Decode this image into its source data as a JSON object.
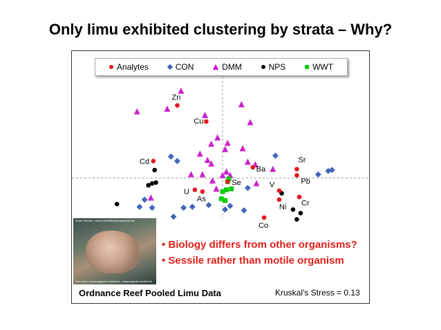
{
  "slide": {
    "title": "Only limu exhibited clustering by strata – Why?",
    "bullets": [
      "•  Biology differs from other organisms?",
      "•  Sessile rather than motile organism"
    ],
    "footer_left": "Ordnance Reef Pooled Limu Data",
    "footer_right": "Kruskal's Stress = 0.13",
    "photo_caption_top": "Keoki Stender - www.marinelifephotography.com",
    "photo_caption_bottom": "Limu kohu (Asparagopsis taxiformis) - Asparagopsis taxiformis"
  },
  "colors": {
    "analytes": "#e8161c",
    "con": "#4466bb",
    "dmm": "#cc22cc",
    "nps": "#000000",
    "wwt": "#11cc11"
  },
  "chart_data": {
    "type": "scatter",
    "title": "",
    "xlabel": "",
    "ylabel": "",
    "xlim": [
      -1.0,
      1.0
    ],
    "ylim": [
      -1.0,
      1.0
    ],
    "grid": false,
    "reference_lines": {
      "x": 0,
      "y": 0,
      "style": "dashed"
    },
    "legend": {
      "placement": "top-center",
      "entries": [
        {
          "key": "analytes",
          "label": "Analytes",
          "marker": "circle"
        },
        {
          "key": "con",
          "label": "CON",
          "marker": "diamond"
        },
        {
          "key": "dmm",
          "label": "DMM",
          "marker": "triangle"
        },
        {
          "key": "nps",
          "label": "NPS",
          "marker": "circle"
        },
        {
          "key": "wwt",
          "label": "WWT",
          "marker": "square"
        }
      ]
    },
    "analytes": [
      {
        "label": "Zn",
        "x": -0.36,
        "y": 0.81
      },
      {
        "label": "Cu",
        "x": -0.13,
        "y": 0.63
      },
      {
        "label": "Cd",
        "x": -0.55,
        "y": 0.19
      },
      {
        "label": "U",
        "x": -0.22,
        "y": -0.13
      },
      {
        "label": "As",
        "x": -0.16,
        "y": -0.15
      },
      {
        "label": "Se",
        "x": 0.04,
        "y": -0.04
      },
      {
        "label": "Ba",
        "x": 0.24,
        "y": 0.12
      },
      {
        "label": "Sr",
        "x": 0.59,
        "y": 0.1
      },
      {
        "label": "Pb",
        "x": 0.59,
        "y": 0.03
      },
      {
        "label": "V",
        "x": 0.45,
        "y": -0.14
      },
      {
        "label": "Ni",
        "x": 0.45,
        "y": -0.24
      },
      {
        "label": "Cr",
        "x": 0.61,
        "y": -0.21
      },
      {
        "label": "Co",
        "x": 0.33,
        "y": -0.44
      }
    ],
    "series": [
      {
        "name": "CON",
        "key": "con",
        "points": [
          [
            -0.41,
            0.24
          ],
          [
            -0.36,
            0.19
          ],
          [
            -0.62,
            -0.24
          ],
          [
            -0.66,
            -0.32
          ],
          [
            -0.56,
            -0.33
          ],
          [
            -0.39,
            -0.43
          ],
          [
            -0.31,
            -0.33
          ],
          [
            -0.24,
            -0.32
          ],
          [
            -0.11,
            -0.3
          ],
          [
            0.02,
            -0.35
          ],
          [
            0.06,
            -0.31
          ],
          [
            0.17,
            -0.36
          ],
          [
            0.2,
            -0.11
          ],
          [
            0.42,
            0.25
          ],
          [
            0.76,
            0.04
          ],
          [
            0.84,
            0.08
          ],
          [
            0.87,
            0.09
          ]
        ]
      },
      {
        "name": "DMM",
        "key": "dmm",
        "points": [
          [
            -0.68,
            0.74
          ],
          [
            -0.44,
            0.77
          ],
          [
            -0.33,
            0.97
          ],
          [
            -0.14,
            0.7
          ],
          [
            0.15,
            0.82
          ],
          [
            0.22,
            0.62
          ],
          [
            -0.09,
            0.38
          ],
          [
            -0.04,
            0.45
          ],
          [
            0.02,
            0.32
          ],
          [
            0.04,
            0.39
          ],
          [
            0.16,
            0.33
          ],
          [
            -0.18,
            0.27
          ],
          [
            -0.12,
            0.2
          ],
          [
            -0.09,
            0.16
          ],
          [
            -0.25,
            0.04
          ],
          [
            -0.16,
            0.04
          ],
          [
            -0.08,
            -0.03
          ],
          [
            0.0,
            0.03
          ],
          [
            0.03,
            0.07
          ],
          [
            0.06,
            0.03
          ],
          [
            0.2,
            0.18
          ],
          [
            0.26,
            0.15
          ],
          [
            0.27,
            -0.06
          ],
          [
            0.4,
            0.1
          ],
          [
            -0.57,
            -0.22
          ],
          [
            -0.05,
            -0.12
          ]
        ]
      },
      {
        "name": "NPS",
        "key": "nps",
        "points": [
          [
            -0.54,
            0.09
          ],
          [
            -0.56,
            -0.06
          ],
          [
            -0.53,
            -0.05
          ],
          [
            -0.59,
            -0.08
          ],
          [
            -0.84,
            -0.29
          ],
          [
            0.47,
            -0.17
          ],
          [
            0.56,
            -0.35
          ],
          [
            0.62,
            -0.39
          ],
          [
            0.59,
            -0.46
          ]
        ]
      },
      {
        "name": "WWT",
        "key": "wwt",
        "points": [
          [
            0.04,
            -0.04
          ],
          [
            0.05,
            -0.01
          ],
          [
            0.03,
            -0.13
          ],
          [
            0.07,
            -0.12
          ],
          [
            0.0,
            -0.15
          ],
          [
            -0.01,
            -0.23
          ],
          [
            0.02,
            -0.25
          ]
        ]
      }
    ]
  }
}
